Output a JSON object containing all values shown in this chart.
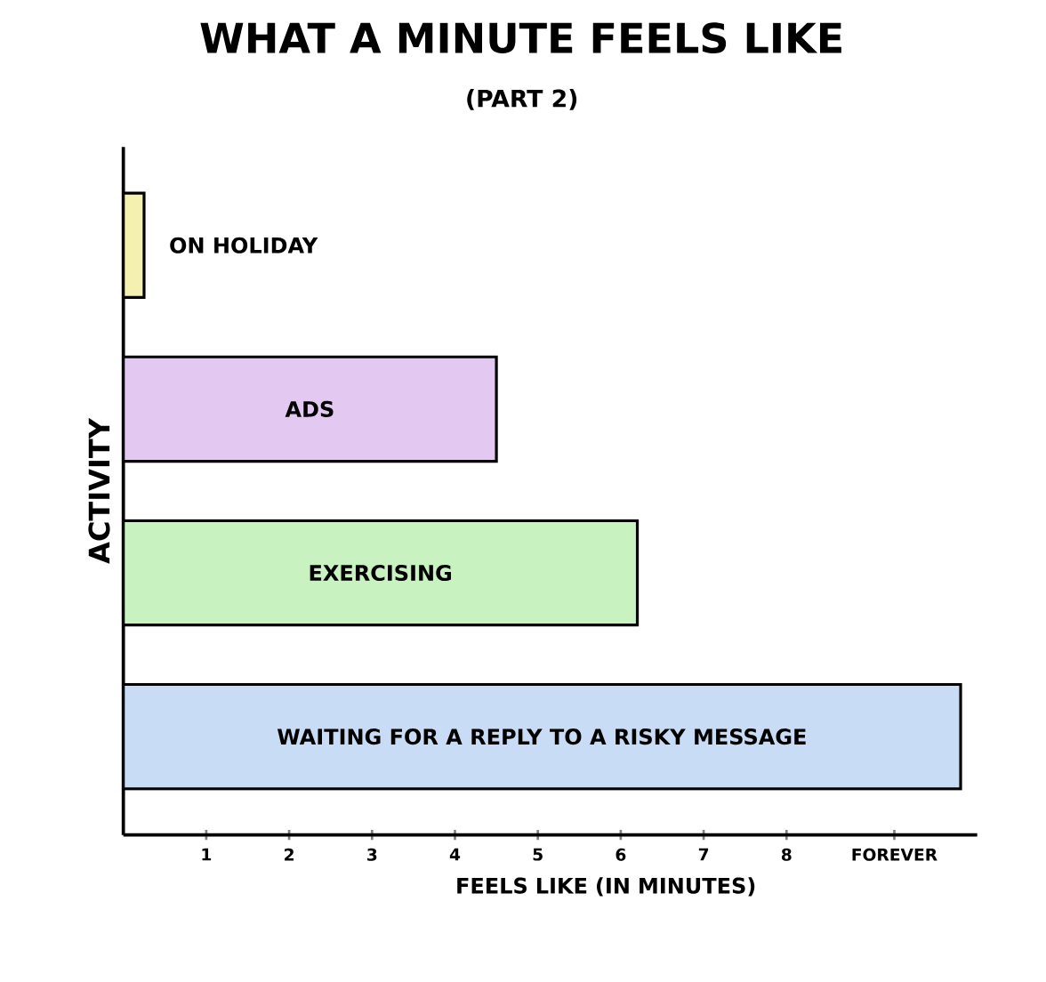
{
  "chart_data": {
    "type": "bar",
    "orientation": "horizontal",
    "title": "WHAT A MINUTE FEELS LIKE",
    "subtitle": "(PART 2)",
    "xlabel": "FEELS LIKE (IN MINUTES)",
    "ylabel": "ACTIVITY",
    "categories": [
      "ON HOLIDAY",
      "ADS",
      "EXERCISING",
      "WAITING FOR A REPLY TO A RISKY MESSAGE"
    ],
    "values": [
      0.25,
      4.5,
      6.2,
      10.1
    ],
    "colors": [
      "#f3f0b0",
      "#e3c8f2",
      "#c8f2c0",
      "#c8dcf5"
    ],
    "xlim": [
      0,
      10.3
    ],
    "xticks": [
      1,
      2,
      3,
      4,
      5,
      6,
      7,
      8,
      {
        "value": 9.3,
        "label": "FOREVER"
      }
    ],
    "grid": false
  }
}
